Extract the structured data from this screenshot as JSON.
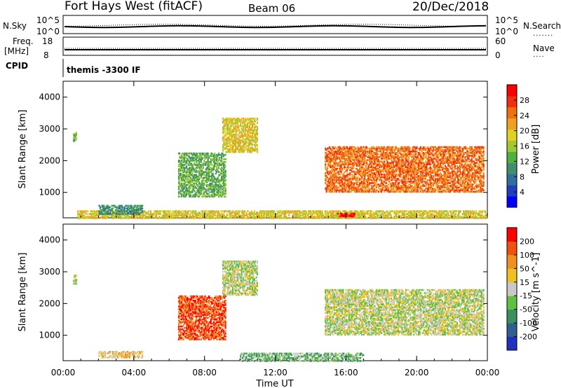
{
  "header": {
    "station": "Fort Hays West (fitACF)",
    "beam": "Beam 06",
    "date": "20/Dec/2018"
  },
  "top_panels": {
    "nsky_label": "N.Sky",
    "nsky_ticks": [
      "10^5",
      "10^0"
    ],
    "nsearch_label": "N.Search",
    "nsearch_ticks": [
      "10^5",
      "10^0"
    ],
    "freq_label": "Freq.",
    "freq_unit": "[MHz]",
    "freq_ticks": [
      "18",
      "8"
    ],
    "nave_label": "Nave",
    "nave_ticks": [
      "60",
      "0"
    ],
    "cpid_label": "CPID",
    "cpid_value": "themis -3300 IF"
  },
  "chart_data": [
    {
      "type": "heatmap",
      "title": "",
      "xlabel": "",
      "ylabel": "Slant Range [km]",
      "xlim": [
        "00:00",
        "24:00"
      ],
      "ylim": [
        200,
        4500
      ],
      "x_ticks": [
        "00:00",
        "04:00",
        "08:00",
        "12:00",
        "16:00",
        "20:00",
        "00:00"
      ],
      "y_ticks": [
        1000,
        2000,
        3000,
        4000
      ],
      "colorbar": {
        "label": "Power [dB]",
        "ticks": [
          "4",
          "8",
          "12",
          "16",
          "20",
          "24",
          "28"
        ],
        "colors": [
          "#0000ff",
          "#1f3fbf",
          "#2f6f9f",
          "#3f8f6f",
          "#50b040",
          "#a0c830",
          "#e0d020",
          "#f0a020",
          "#f07010",
          "#f03010",
          "#ff0000"
        ]
      },
      "regions": [
        {
          "t0": 0.55,
          "t1": 0.75,
          "r0": 2650,
          "r1": 2950,
          "level": 4
        },
        {
          "t0": 0.8,
          "t1": 24.0,
          "r0": 220,
          "r1": 480,
          "level": 6
        },
        {
          "t0": 2.0,
          "t1": 4.5,
          "r0": 350,
          "r1": 650,
          "level": 3
        },
        {
          "t0": 6.5,
          "t1": 9.2,
          "r0": 900,
          "r1": 2300,
          "level": 4
        },
        {
          "t0": 9.0,
          "t1": 11.0,
          "r0": 2300,
          "r1": 3400,
          "level": 6
        },
        {
          "t0": 14.8,
          "t1": 23.8,
          "r0": 1050,
          "r1": 2500,
          "level": 8
        },
        {
          "t0": 15.5,
          "t1": 16.5,
          "r0": 280,
          "r1": 400,
          "level": 10
        }
      ]
    },
    {
      "type": "heatmap",
      "title": "",
      "xlabel": "Time UT",
      "ylabel": "Slant Range [km]",
      "xlim": [
        "00:00",
        "24:00"
      ],
      "ylim": [
        200,
        4500
      ],
      "x_ticks": [
        "00:00",
        "04:00",
        "08:00",
        "12:00",
        "16:00",
        "20:00",
        "00:00"
      ],
      "y_ticks": [
        1000,
        2000,
        3000,
        4000
      ],
      "colorbar": {
        "label": "Velocity [m s^-1]",
        "ticks": [
          "200",
          "100",
          "50",
          "15",
          "-15",
          "-50",
          "-100",
          "-200"
        ],
        "colors": [
          "#2030c0",
          "#306090",
          "#3a9060",
          "#60c040",
          "#c8c8c8",
          "#f0c020",
          "#f09020",
          "#f05010",
          "#ff0000"
        ]
      },
      "regions": [
        {
          "t0": 0.55,
          "t1": 0.75,
          "r0": 2650,
          "r1": 2950,
          "level": 4
        },
        {
          "t0": 2.0,
          "t1": 4.5,
          "r0": 330,
          "r1": 550,
          "level": 5
        },
        {
          "t0": 6.5,
          "t1": 9.2,
          "r0": 900,
          "r1": 2300,
          "level": 7
        },
        {
          "t0": 9.0,
          "t1": 11.0,
          "r0": 2300,
          "r1": 3400,
          "level": 4
        },
        {
          "t0": 10.0,
          "t1": 17.0,
          "r0": 220,
          "r1": 500,
          "level": 3
        },
        {
          "t0": 14.8,
          "t1": 23.8,
          "r0": 1050,
          "r1": 2500,
          "level": 4
        }
      ]
    }
  ]
}
